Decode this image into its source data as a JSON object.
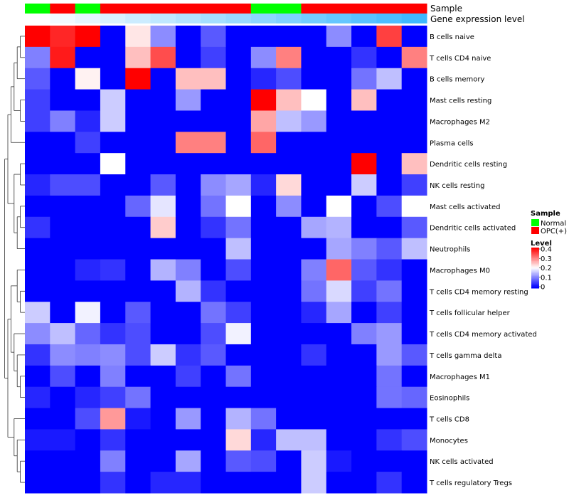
{
  "chart_data": {
    "type": "heatmap",
    "rows": [
      "B cells naive",
      "T cells CD4 naive",
      "B cells memory",
      "Mast cells resting",
      "Macrophages M2",
      "Plasma cells",
      "Dendritic cells resting",
      "NK cells resting",
      "Mast cells activated",
      "Dendritic cells activated",
      "Neutrophils",
      "Macrophages M0",
      "T cells CD4 memory resting",
      "T cells follicular helper",
      "T cells CD4 memory activated",
      "T cells gamma delta",
      "Macrophages M1",
      "Eosinophils",
      "T cells CD8",
      "Monocytes",
      "NK cells activated",
      "T cells regulatory  Tregs"
    ],
    "sample_annotation": [
      "Normal",
      "OPC(+)",
      "Normal",
      "OPC(+)",
      "OPC(+)",
      "OPC(+)",
      "OPC(+)",
      "OPC(+)",
      "OPC(+)",
      "Normal",
      "Normal",
      "OPC(+)",
      "OPC(+)",
      "OPC(+)",
      "OPC(+)",
      "OPC(+)"
    ],
    "gene_expression_annotation": [
      0.0,
      0.05,
      0.1,
      0.15,
      0.2,
      0.25,
      0.3,
      0.35,
      0.4,
      0.45,
      0.5,
      0.55,
      0.6,
      0.65,
      0.7,
      0.75
    ],
    "values": [
      [
        0.4,
        0.37,
        0.4,
        0.0,
        0.22,
        0.11,
        0.0,
        0.07,
        0.0,
        0.0,
        0.0,
        0.0,
        0.11,
        0.0,
        0.35,
        0.0
      ],
      [
        0.1,
        0.38,
        0.0,
        0.0,
        0.25,
        0.34,
        0.0,
        0.05,
        0.0,
        0.11,
        0.3,
        0.0,
        0.0,
        0.04,
        0.0,
        0.3
      ],
      [
        0.07,
        0.0,
        0.21,
        0.0,
        0.4,
        0.0,
        0.25,
        0.25,
        0.0,
        0.03,
        0.06,
        0.0,
        0.0,
        0.09,
        0.15,
        0.0
      ],
      [
        0.05,
        0.0,
        0.0,
        0.16,
        0.0,
        0.0,
        0.12,
        0.0,
        0.0,
        0.4,
        0.25,
        0.2,
        0.0,
        0.25,
        0.0,
        0.0
      ],
      [
        0.05,
        0.1,
        0.03,
        0.16,
        0.0,
        0.0,
        0.0,
        0.0,
        0.0,
        0.27,
        0.15,
        0.12,
        0.0,
        0.0,
        0.0,
        0.0
      ],
      [
        0.0,
        0.0,
        0.05,
        0.0,
        0.0,
        0.0,
        0.3,
        0.3,
        0.0,
        0.32,
        0.0,
        0.0,
        0.0,
        0.0,
        0.0,
        0.0
      ],
      [
        0.0,
        0.0,
        0.0,
        0.2,
        0.0,
        0.0,
        0.0,
        0.0,
        0.0,
        0.0,
        0.0,
        0.0,
        0.0,
        0.4,
        0.0,
        0.25
      ],
      [
        0.03,
        0.06,
        0.06,
        0.0,
        0.0,
        0.07,
        0.0,
        0.11,
        0.13,
        0.03,
        0.23,
        0.0,
        0.0,
        0.16,
        0.0,
        0.05
      ],
      [
        0.0,
        0.0,
        0.0,
        0.0,
        0.08,
        0.18,
        0.0,
        0.09,
        0.2,
        0.0,
        0.11,
        0.0,
        0.2,
        0.0,
        0.06,
        0.2
      ],
      [
        0.04,
        0.0,
        0.0,
        0.0,
        0.0,
        0.24,
        0.0,
        0.04,
        0.09,
        0.0,
        0.0,
        0.13,
        0.14,
        0.0,
        0.0,
        0.07
      ],
      [
        0.0,
        0.0,
        0.0,
        0.0,
        0.0,
        0.0,
        0.0,
        0.0,
        0.15,
        0.0,
        0.0,
        0.0,
        0.13,
        0.1,
        0.07,
        0.15
      ],
      [
        0.0,
        0.0,
        0.03,
        0.04,
        0.0,
        0.14,
        0.1,
        0.0,
        0.06,
        0.0,
        0.0,
        0.1,
        0.32,
        0.07,
        0.04,
        0.0
      ],
      [
        0.0,
        0.0,
        0.0,
        0.0,
        0.0,
        0.0,
        0.14,
        0.04,
        0.0,
        0.0,
        0.0,
        0.09,
        0.17,
        0.05,
        0.09,
        0.0
      ],
      [
        0.16,
        0.0,
        0.19,
        0.0,
        0.07,
        0.0,
        0.0,
        0.09,
        0.05,
        0.0,
        0.0,
        0.03,
        0.13,
        0.0,
        0.05,
        0.0
      ],
      [
        0.11,
        0.15,
        0.08,
        0.04,
        0.06,
        0.0,
        0.0,
        0.06,
        0.19,
        0.0,
        0.0,
        0.0,
        0.0,
        0.1,
        0.12,
        0.0
      ],
      [
        0.04,
        0.11,
        0.1,
        0.11,
        0.06,
        0.16,
        0.04,
        0.07,
        0.0,
        0.0,
        0.0,
        0.04,
        0.0,
        0.0,
        0.12,
        0.07
      ],
      [
        0.0,
        0.06,
        0.0,
        0.1,
        0.0,
        0.0,
        0.05,
        0.0,
        0.09,
        0.0,
        0.0,
        0.0,
        0.0,
        0.0,
        0.09,
        0.0
      ],
      [
        0.03,
        0.0,
        0.03,
        0.05,
        0.09,
        0.0,
        0.0,
        0.0,
        0.0,
        0.0,
        0.0,
        0.0,
        0.0,
        0.0,
        0.09,
        0.08
      ],
      [
        0.0,
        0.0,
        0.06,
        0.28,
        0.02,
        0.0,
        0.12,
        0.0,
        0.14,
        0.09,
        0.0,
        0.0,
        0.0,
        0.0,
        0.0,
        0.0
      ],
      [
        0.02,
        0.02,
        0.0,
        0.04,
        0.0,
        0.0,
        0.0,
        0.0,
        0.23,
        0.03,
        0.15,
        0.15,
        0.0,
        0.0,
        0.04,
        0.06
      ],
      [
        0.0,
        0.0,
        0.0,
        0.1,
        0.0,
        0.0,
        0.13,
        0.0,
        0.07,
        0.06,
        0.0,
        0.16,
        0.02,
        0.0,
        0.0,
        0.0
      ],
      [
        0.0,
        0.0,
        0.0,
        0.04,
        0.0,
        0.03,
        0.03,
        0.0,
        0.0,
        0.0,
        0.0,
        0.16,
        0.0,
        0.0,
        0.04,
        0.0
      ]
    ],
    "color_scale": {
      "low": "#0000ff",
      "mid": "#ffffff",
      "high": "#ff0000",
      "range": [
        0,
        0.4
      ]
    },
    "annotation_labels": {
      "sample": "Sample",
      "gene_expression": "Gene expression level"
    },
    "legend": {
      "sample_title": "Sample",
      "sample_entries": [
        {
          "label": "Normal",
          "color": "#00ff00"
        },
        {
          "label": "OPC(+)",
          "color": "#ff0000"
        }
      ],
      "level_title": "Level",
      "level_ticks": [
        "0.4",
        "0.3",
        "0.2",
        "0.1",
        "0"
      ]
    },
    "gene_expression_colors": {
      "low": "#ffffff",
      "high": "#3fb9ff"
    },
    "dendrogram": "row",
    "legend_position": "right"
  }
}
